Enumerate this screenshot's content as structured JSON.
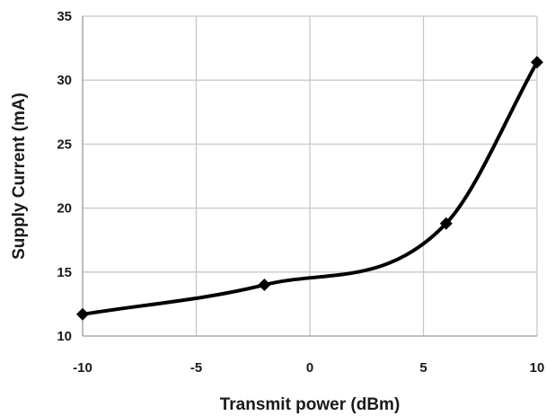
{
  "chart_data": {
    "type": "line",
    "title": "",
    "xlabel": "Transmit power (dBm)",
    "ylabel": "Supply Current (mA)",
    "xlim": [
      -10,
      10
    ],
    "ylim": [
      10,
      35
    ],
    "x_ticks": [
      -10,
      -5,
      0,
      5,
      10
    ],
    "y_ticks": [
      10,
      15,
      20,
      25,
      30,
      35
    ],
    "grid": true,
    "legend": "none",
    "smooth": true,
    "marker": "diamond",
    "line_color": "#000000",
    "series": [
      {
        "x": [
          -10,
          -2,
          6,
          10
        ],
        "values": [
          11.7,
          14.0,
          18.8,
          31.4
        ]
      }
    ]
  }
}
